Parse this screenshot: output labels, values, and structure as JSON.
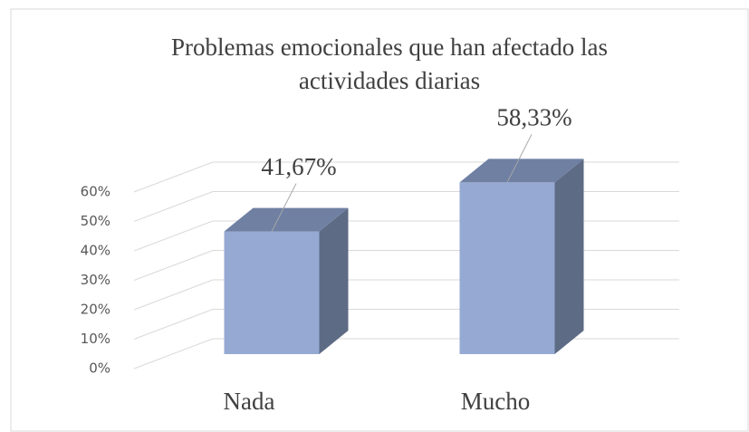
{
  "chart_data": {
    "type": "bar3d",
    "title": [
      "Problemas emocionales que han afectado las",
      "actividades diarias"
    ],
    "categories": [
      "Nada",
      "Mucho"
    ],
    "values": [
      41.67,
      58.33
    ],
    "value_labels": [
      "41,67%",
      "58,33%"
    ],
    "color": "#95a9d3",
    "ylim": [
      0,
      70
    ],
    "yticks": [
      {
        "value": 0,
        "label": "0%"
      },
      {
        "value": 10,
        "label": "10%"
      },
      {
        "value": 20,
        "label": "20%"
      },
      {
        "value": 30,
        "label": "30%"
      },
      {
        "value": 40,
        "label": "40%"
      },
      {
        "value": 50,
        "label": "50%"
      },
      {
        "value": 60,
        "label": "60%"
      }
    ],
    "grid": true
  }
}
